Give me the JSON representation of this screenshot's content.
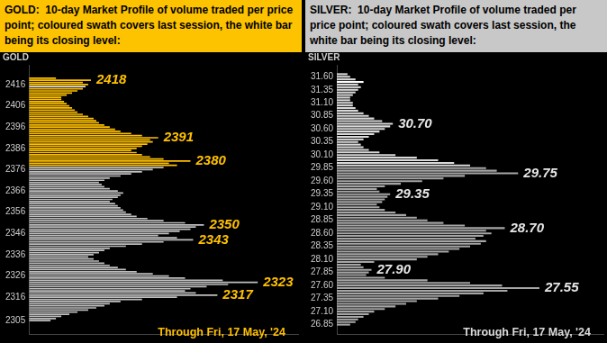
{
  "chart_data": [
    {
      "type": "bar",
      "orientation": "horizontal",
      "title": "GOLD:  10-day Market Profile of volume traded per price point; coloured swath covers last session, the white bar being its closing level:",
      "ylabel": "GOLD",
      "subtitle": "Through Fri, 17 May, '24",
      "y": [
        2305,
        2306,
        2307,
        2308,
        2309,
        2310,
        2311,
        2312,
        2313,
        2314,
        2315,
        2316,
        2317,
        2318,
        2319,
        2320,
        2321,
        2322,
        2323,
        2324,
        2325,
        2326,
        2327,
        2328,
        2329,
        2330,
        2331,
        2332,
        2333,
        2334,
        2335,
        2336,
        2337,
        2338,
        2339,
        2340,
        2341,
        2342,
        2343,
        2344,
        2345,
        2346,
        2347,
        2348,
        2349,
        2350,
        2351,
        2352,
        2353,
        2354,
        2355,
        2356,
        2357,
        2358,
        2359,
        2360,
        2361,
        2362,
        2363,
        2364,
        2365,
        2366,
        2367,
        2368,
        2369,
        2370,
        2371,
        2372,
        2373,
        2374,
        2375,
        2376,
        2377,
        2378,
        2379,
        2380,
        2381,
        2382,
        2383,
        2384,
        2385,
        2386,
        2387,
        2388,
        2389,
        2390,
        2391,
        2392,
        2393,
        2394,
        2395,
        2396,
        2397,
        2398,
        2399,
        2400,
        2401,
        2402,
        2403,
        2404,
        2405,
        2406,
        2407,
        2408,
        2409,
        2410,
        2411,
        2412,
        2413,
        2414,
        2415,
        2416,
        2417,
        2418,
        2419
      ],
      "values": [
        8,
        10,
        12,
        15,
        18,
        22,
        25,
        28,
        30,
        34,
        42,
        55,
        70,
        62,
        58,
        60,
        66,
        74,
        85,
        72,
        58,
        52,
        46,
        40,
        36,
        33,
        30,
        28,
        26,
        24,
        22,
        24,
        26,
        28,
        30,
        36,
        42,
        50,
        61,
        55,
        48,
        52,
        56,
        60,
        62,
        65,
        58,
        50,
        44,
        40,
        38,
        36,
        35,
        34,
        33,
        32,
        30,
        31,
        33,
        34,
        35,
        33,
        30,
        28,
        27,
        26,
        28,
        30,
        34,
        38,
        42,
        46,
        50,
        55,
        52,
        60,
        50,
        45,
        42,
        40,
        38,
        40,
        42,
        44,
        46,
        45,
        48,
        42,
        38,
        34,
        32,
        30,
        28,
        26,
        25,
        24,
        22,
        20,
        18,
        17,
        16,
        15,
        14,
        13,
        12,
        12,
        14,
        16,
        18,
        20,
        21,
        22,
        20,
        23,
        10
      ],
      "colors": [
        "#bfbfbf",
        "#bfbfbf",
        "#bfbfbf",
        "#bfbfbf",
        "#bfbfbf",
        "#bfbfbf",
        "#bfbfbf",
        "#bfbfbf",
        "#bfbfbf",
        "#bfbfbf",
        "#bfbfbf",
        "#bfbfbf",
        "#bfbfbf",
        "#bfbfbf",
        "#bfbfbf",
        "#bfbfbf",
        "#bfbfbf",
        "#bfbfbf",
        "#bfbfbf",
        "#bfbfbf",
        "#bfbfbf",
        "#bfbfbf",
        "#bfbfbf",
        "#bfbfbf",
        "#bfbfbf",
        "#bfbfbf",
        "#bfbfbf",
        "#bfbfbf",
        "#bfbfbf",
        "#bfbfbf",
        "#bfbfbf",
        "#bfbfbf",
        "#bfbfbf",
        "#bfbfbf",
        "#bfbfbf",
        "#bfbfbf",
        "#bfbfbf",
        "#bfbfbf",
        "#bfbfbf",
        "#bfbfbf",
        "#bfbfbf",
        "#bfbfbf",
        "#bfbfbf",
        "#bfbfbf",
        "#bfbfbf",
        "#bfbfbf",
        "#bfbfbf",
        "#bfbfbf",
        "#bfbfbf",
        "#bfbfbf",
        "#bfbfbf",
        "#bfbfbf",
        "#bfbfbf",
        "#bfbfbf",
        "#bfbfbf",
        "#bfbfbf",
        "#bfbfbf",
        "#bfbfbf",
        "#bfbfbf",
        "#bfbfbf",
        "#bfbfbf",
        "#bfbfbf",
        "#bfbfbf",
        "#bfbfbf",
        "#bfbfbf",
        "#bfbfbf",
        "#bfbfbf",
        "#bfbfbf",
        "#bfbfbf",
        "#bfbfbf",
        "#bfbfbf",
        "#bfbfbf",
        "#bfbfbf",
        "#ffc000",
        "#ffc000",
        "#ffc000",
        "#ffc000",
        "#ffc000",
        "#ffc000",
        "#ffc000",
        "#ffc000",
        "#ffc000",
        "#ffc000",
        "#ffc000",
        "#ffc000",
        "#ffc000",
        "#ffc000",
        "#ffc000",
        "#ffc000",
        "#ffc000",
        "#ffc000",
        "#ffc000",
        "#ffc000",
        "#ffc000",
        "#ffc000",
        "#ffc000",
        "#ffc000",
        "#ffc000",
        "#ffc000",
        "#ffc000",
        "#ffc000",
        "#ffc000",
        "#ffc000",
        "#ffc000",
        "#ffc000",
        "#ffc000",
        "#ffc000",
        "#ffc000",
        "#ffc000",
        "#ffc000",
        "#ffffff",
        "#ffc000",
        "#ffc000",
        "#ffc000",
        "#ffc000"
      ],
      "ylim": [
        2304,
        2420
      ],
      "yticks": [
        2305,
        2316,
        2326,
        2336,
        2346,
        2356,
        2366,
        2376,
        2386,
        2396,
        2406,
        2416
      ],
      "xlim": [
        0,
        100
      ],
      "tick_labels": "y",
      "grid": false,
      "annotations": [
        {
          "text": "2418",
          "y": 2418
        },
        {
          "text": "2391",
          "y": 2391
        },
        {
          "text": "2380",
          "y": 2380
        },
        {
          "text": "2350",
          "y": 2350
        },
        {
          "text": "2343",
          "y": 2343
        },
        {
          "text": "2323",
          "y": 2323
        },
        {
          "text": "2317",
          "y": 2317
        }
      ]
    },
    {
      "type": "bar",
      "orientation": "horizontal",
      "title": "SILVER:  10-day Market Profile of volume traded per price point; coloured swath covers last session, the white bar being its closing level:",
      "ylabel": "SILVER",
      "subtitle": "Through Fri, 17 May, '24",
      "y": [
        26.85,
        26.9,
        26.95,
        27,
        27.05,
        27.1,
        27.15,
        27.2,
        27.25,
        27.3,
        27.35,
        27.4,
        27.45,
        27.5,
        27.55,
        27.6,
        27.65,
        27.7,
        27.75,
        27.8,
        27.85,
        27.9,
        27.95,
        28,
        28.05,
        28.1,
        28.15,
        28.2,
        28.25,
        28.3,
        28.35,
        28.4,
        28.45,
        28.5,
        28.55,
        28.6,
        28.65,
        28.7,
        28.75,
        28.8,
        28.85,
        28.9,
        28.95,
        29,
        29.05,
        29.1,
        29.15,
        29.2,
        29.25,
        29.3,
        29.35,
        29.4,
        29.45,
        29.5,
        29.55,
        29.6,
        29.65,
        29.7,
        29.75,
        29.8,
        29.85,
        29.9,
        29.95,
        30,
        30.05,
        30.1,
        30.15,
        30.2,
        30.25,
        30.3,
        30.35,
        30.4,
        30.45,
        30.5,
        30.55,
        30.6,
        30.65,
        30.7,
        30.75,
        30.8,
        30.85,
        30.9,
        30.95,
        31,
        31.05,
        31.1,
        31.15,
        31.2,
        31.25,
        31.3,
        31.35,
        31.4,
        31.45,
        31.5,
        31.55,
        31.6,
        31.65
      ],
      "values": [
        5,
        7,
        8,
        10,
        12,
        14,
        18,
        22,
        26,
        30,
        38,
        46,
        55,
        64,
        76,
        62,
        50,
        34,
        18,
        11,
        12,
        13,
        10,
        9,
        14,
        30,
        34,
        38,
        42,
        46,
        50,
        54,
        56,
        52,
        55,
        58,
        56,
        63,
        48,
        40,
        34,
        30,
        26,
        22,
        18,
        16,
        15,
        17,
        18,
        19,
        20,
        16,
        15,
        18,
        24,
        32,
        40,
        48,
        68,
        60,
        56,
        50,
        44,
        38,
        30,
        22,
        16,
        12,
        10,
        9,
        8,
        10,
        12,
        14,
        16,
        18,
        20,
        21,
        17,
        14,
        12,
        10,
        8,
        7,
        6,
        6,
        5,
        5,
        6,
        7,
        8,
        9,
        8,
        10,
        7,
        5,
        4
      ],
      "colors": [
        "#a6a6a6",
        "#a6a6a6",
        "#a6a6a6",
        "#a6a6a6",
        "#a6a6a6",
        "#a6a6a6",
        "#a6a6a6",
        "#a6a6a6",
        "#a6a6a6",
        "#a6a6a6",
        "#a6a6a6",
        "#a6a6a6",
        "#a6a6a6",
        "#a6a6a6",
        "#a6a6a6",
        "#a6a6a6",
        "#a6a6a6",
        "#a6a6a6",
        "#a6a6a6",
        "#a6a6a6",
        "#a6a6a6",
        "#a6a6a6",
        "#a6a6a6",
        "#a6a6a6",
        "#a6a6a6",
        "#a6a6a6",
        "#a6a6a6",
        "#a6a6a6",
        "#a6a6a6",
        "#a6a6a6",
        "#a6a6a6",
        "#a6a6a6",
        "#a6a6a6",
        "#a6a6a6",
        "#a6a6a6",
        "#a6a6a6",
        "#a6a6a6",
        "#a6a6a6",
        "#a6a6a6",
        "#a6a6a6",
        "#a6a6a6",
        "#a6a6a6",
        "#a6a6a6",
        "#a6a6a6",
        "#a6a6a6",
        "#a6a6a6",
        "#a6a6a6",
        "#a6a6a6",
        "#a6a6a6",
        "#a6a6a6",
        "#a6a6a6",
        "#a6a6a6",
        "#a6a6a6",
        "#a6a6a6",
        "#a6a6a6",
        "#a6a6a6",
        "#a6a6a6",
        "#a6a6a6",
        "#a6a6a6",
        "#a6a6a6",
        "#a6a6a6",
        "#d9d9d9",
        "#d9d9d9",
        "#d9d9d9",
        "#d9d9d9",
        "#d9d9d9",
        "#d9d9d9",
        "#d9d9d9",
        "#d9d9d9",
        "#d9d9d9",
        "#d9d9d9",
        "#d9d9d9",
        "#d9d9d9",
        "#d9d9d9",
        "#d9d9d9",
        "#d9d9d9",
        "#d9d9d9",
        "#d9d9d9",
        "#d9d9d9",
        "#d9d9d9",
        "#d9d9d9",
        "#d9d9d9",
        "#d9d9d9",
        "#d9d9d9",
        "#d9d9d9",
        "#d9d9d9",
        "#d9d9d9",
        "#d9d9d9",
        "#d9d9d9",
        "#d9d9d9",
        "#d9d9d9",
        "#d9d9d9",
        "#d9d9d9",
        "#ffffff",
        "#d9d9d9",
        "#d9d9d9",
        "#d9d9d9"
      ],
      "ylim": [
        26.8,
        31.7
      ],
      "yticks": [
        {
          "value": 31.6,
          "label": "31.60"
        },
        31.35,
        {
          "value": 31.1,
          "label": "31.10"
        },
        30.85,
        {
          "value": 30.6,
          "label": "30.60"
        },
        30.35,
        {
          "value": 30.1,
          "label": "30.10"
        },
        29.85,
        {
          "value": 29.6,
          "label": "29.60"
        },
        29.35,
        {
          "value": 29.1,
          "label": "29.10"
        },
        28.85,
        {
          "value": 28.6,
          "label": "28.60"
        },
        28.35,
        {
          "value": 28.1,
          "label": "28.10"
        },
        27.85,
        {
          "value": 27.6,
          "label": "27.60"
        },
        27.35,
        {
          "value": 27.1,
          "label": "27.10"
        },
        26.85
      ],
      "xlim": [
        0,
        100
      ],
      "tick_labels": "y",
      "grid": false,
      "annotations": [
        {
          "text": "30.70",
          "y": 30.7
        },
        {
          "text": "29.75",
          "y": 29.75
        },
        {
          "text": "29.35",
          "y": 29.35
        },
        {
          "text": "28.70",
          "y": 28.7
        },
        {
          "text": "27.90",
          "y": 27.9
        },
        {
          "text": "27.55",
          "y": 27.55
        }
      ]
    }
  ]
}
